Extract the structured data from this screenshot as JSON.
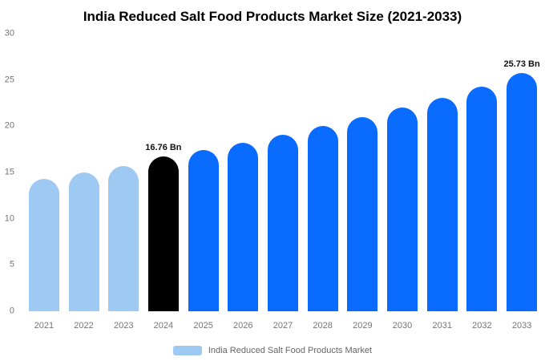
{
  "title": "India Reduced Salt Food Products Market Size (2021-2033)",
  "legend": {
    "label": "India Reduced Salt Food Products Market",
    "swatch_color": "#9dc9f3"
  },
  "chart_data": {
    "type": "bar",
    "title": "India Reduced Salt Food Products Market Size (2021-2033)",
    "categories": [
      "2021",
      "2022",
      "2023",
      "2024",
      "2025",
      "2026",
      "2027",
      "2028",
      "2029",
      "2030",
      "2031",
      "2032",
      "2033"
    ],
    "values": [
      14.3,
      15.0,
      15.7,
      16.76,
      17.4,
      18.2,
      19.1,
      20.0,
      21.0,
      22.0,
      23.1,
      24.3,
      25.73
    ],
    "bar_colors": [
      "#9dc9f3",
      "#9dc9f3",
      "#9dc9f3",
      "#000000",
      "#0a6bff",
      "#0a6bff",
      "#0a6bff",
      "#0a6bff",
      "#0a6bff",
      "#0a6bff",
      "#0a6bff",
      "#0a6bff",
      "#0a6bff"
    ],
    "annotations": [
      {
        "category": "2024",
        "text": "16.76 Bn"
      },
      {
        "category": "2033",
        "text": "25.73 Bn"
      }
    ],
    "xlabel": "",
    "ylabel": "",
    "ylim": [
      0,
      30
    ],
    "yticks": [
      0,
      5,
      10,
      15,
      20,
      25,
      30
    ],
    "grid": false,
    "legend_position": "bottom"
  }
}
